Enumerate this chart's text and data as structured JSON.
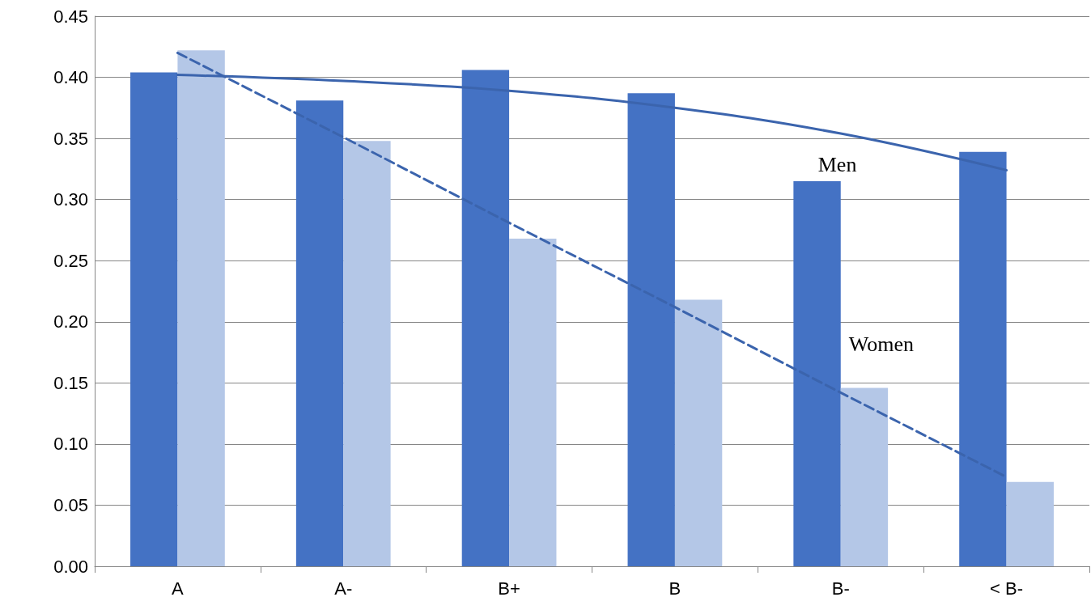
{
  "chart_data": {
    "type": "bar",
    "categories": [
      "A",
      "A-",
      "B+",
      "B",
      "B-",
      "< B-"
    ],
    "series": [
      {
        "color": "#4472c4",
        "values": [
          0.404,
          0.381,
          0.406,
          0.387,
          0.315,
          0.339
        ]
      },
      {
        "color": "#b4c7e7",
        "values": [
          0.422,
          0.348,
          0.268,
          0.218,
          0.146,
          0.069
        ]
      },
      {
        "type": "line",
        "name": "Men",
        "color": "#3b64ad",
        "line_style": "solid",
        "values": [
          0.402,
          0.397,
          0.389,
          0.375,
          0.354,
          0.324
        ]
      },
      {
        "type": "line",
        "name": "Women",
        "color": "#3b64ad",
        "line_style": "dashed",
        "values": [
          0.42,
          0.351,
          0.281,
          0.212,
          0.142,
          0.073
        ]
      }
    ],
    "ylim": [
      0,
      0.45
    ],
    "yticks": [
      {
        "value": 0,
        "label": "0.00"
      },
      {
        "value": 0.05,
        "label": "0.05"
      },
      {
        "value": 0.1,
        "label": "0.10"
      },
      {
        "value": 0.15,
        "label": "0.15"
      },
      {
        "value": 0.2,
        "label": "0.20"
      },
      {
        "value": 0.25,
        "label": "0.25"
      },
      {
        "value": 0.3,
        "label": "0.30"
      },
      {
        "value": 0.35,
        "label": "0.35"
      },
      {
        "value": 0.4,
        "label": "0.40"
      },
      {
        "value": 0.45,
        "label": "0.45"
      }
    ],
    "grid": "y",
    "marker": "none"
  }
}
